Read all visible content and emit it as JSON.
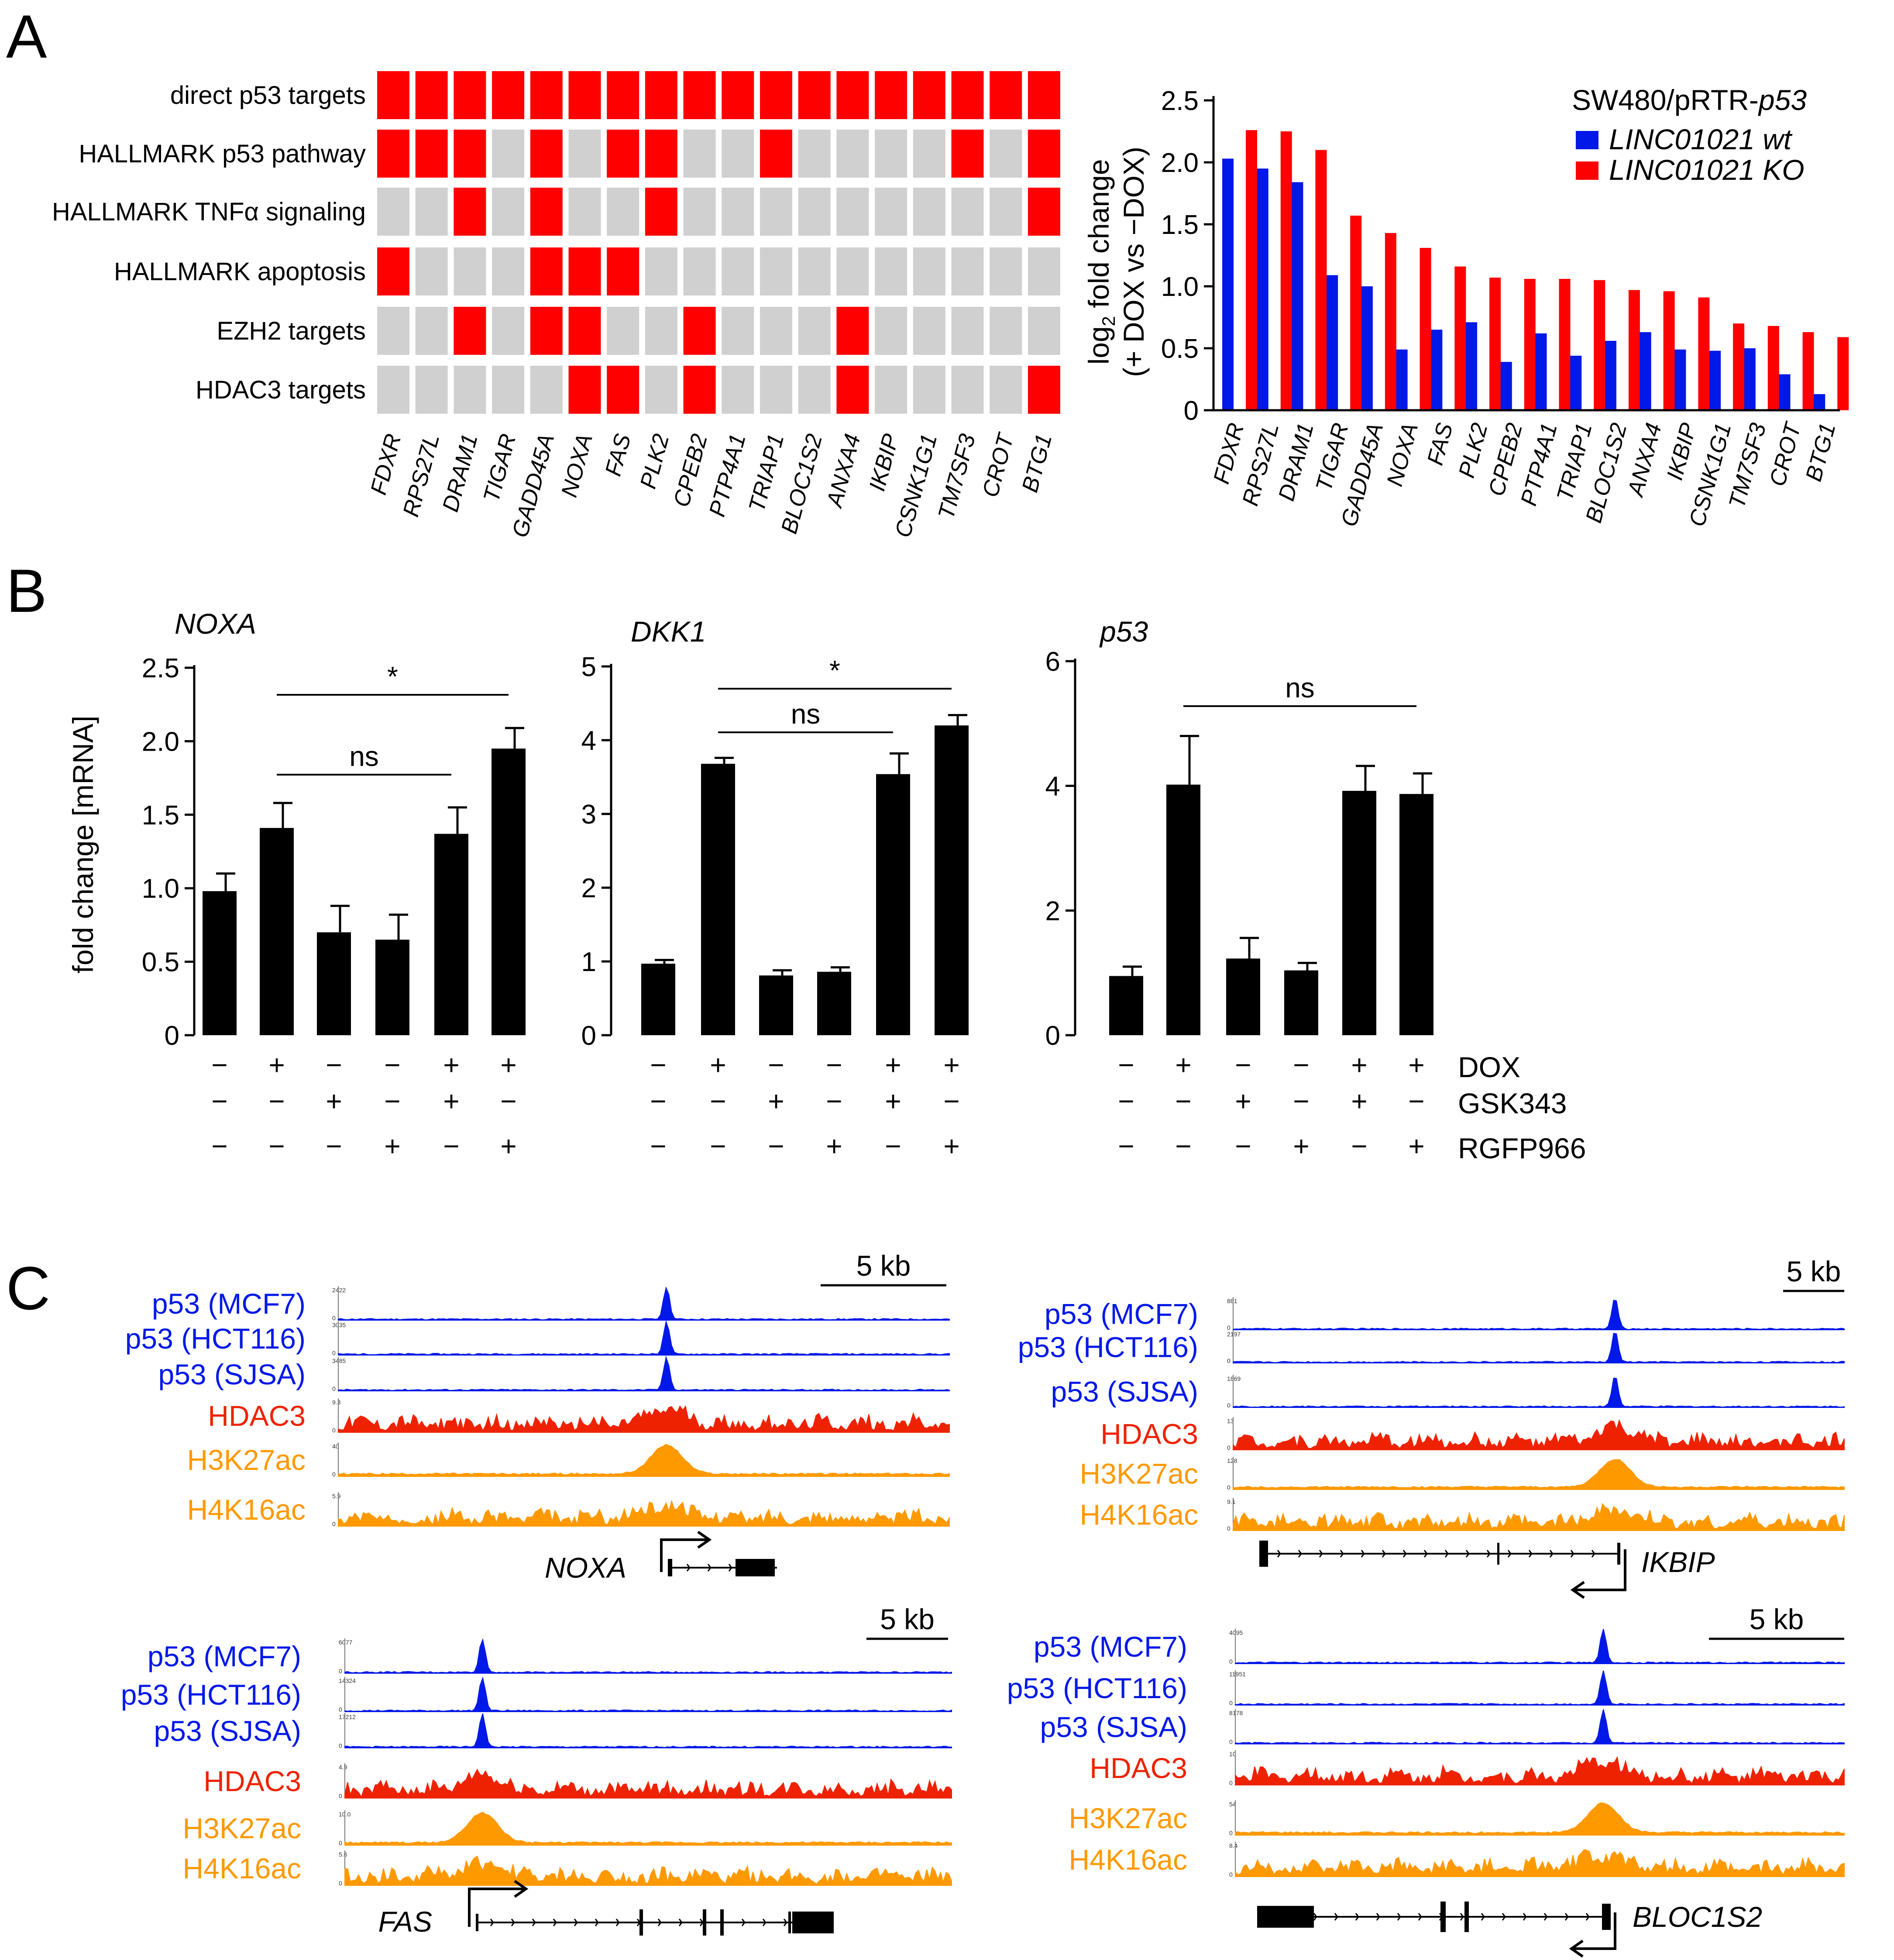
{
  "panels": {
    "a": "A",
    "b": "B",
    "c": "C"
  },
  "colors": {
    "red": "#ff0000",
    "grey": "#d0d0d0",
    "blue": "#0018e8",
    "chip_red": "#ee2200",
    "chip_orange": "#ff9900",
    "bar": "#000000"
  },
  "heatmap": {
    "rows": [
      "direct p53 targets",
      "HALLMARK p53 pathway",
      "HALLMARK TNFα signaling",
      "HALLMARK apoptosis",
      "EZH2 targets",
      "HDAC3 targets"
    ],
    "genes": [
      "FDXR",
      "RPS27L",
      "DRAM1",
      "TIGAR",
      "GADD45A",
      "NOXA",
      "FAS",
      "PLK2",
      "CPEB2",
      "PTP4A1",
      "TRIAP1",
      "BLOC1S2",
      "ANXA4",
      "IKBIP",
      "CSNK1G1",
      "TM7SF3",
      "CROT",
      "BTG1"
    ],
    "matrix": [
      [
        1,
        1,
        1,
        1,
        1,
        1,
        1,
        1,
        1,
        1,
        1,
        1,
        1,
        1,
        1,
        1,
        1,
        1
      ],
      [
        1,
        1,
        1,
        0,
        1,
        0,
        1,
        1,
        0,
        0,
        1,
        0,
        0,
        0,
        0,
        1,
        0,
        1
      ],
      [
        0,
        0,
        1,
        0,
        1,
        0,
        0,
        1,
        0,
        0,
        0,
        0,
        0,
        0,
        0,
        0,
        0,
        1
      ],
      [
        1,
        0,
        0,
        0,
        1,
        1,
        1,
        0,
        0,
        0,
        0,
        0,
        0,
        0,
        0,
        0,
        0,
        0
      ],
      [
        0,
        0,
        1,
        0,
        1,
        1,
        0,
        0,
        1,
        0,
        0,
        0,
        1,
        0,
        0,
        0,
        0,
        0
      ],
      [
        0,
        0,
        0,
        0,
        0,
        1,
        1,
        0,
        1,
        0,
        0,
        0,
        1,
        0,
        0,
        0,
        0,
        1
      ]
    ]
  },
  "chart_data": [
    {
      "type": "bar",
      "title": "SW480/pRTR-p53",
      "title_prefix": "SW480/pRTR-",
      "title_suffix": "p53",
      "ylabel_line1": "log",
      "ylabel_sub": "2",
      "ylabel_line1_rest": " fold change",
      "ylabel_line2": "(+ DOX vs −DOX)",
      "categories": [
        "FDXR",
        "RPS27L",
        "DRAM1",
        "TIGAR",
        "GADD45A",
        "NOXA",
        "FAS",
        "PLK2",
        "CPEB2",
        "PTP4A1",
        "TRIAP1",
        "BLOC1S2",
        "ANXA4",
        "IKBIP",
        "CSNK1G1",
        "TM7SF3",
        "CROT",
        "BTG1"
      ],
      "series": [
        {
          "name": "LINC01021 wt",
          "color": "#0018e8",
          "values": [
            2.03,
            1.95,
            1.84,
            1.09,
            1.0,
            0.49,
            0.65,
            0.71,
            0.39,
            0.62,
            0.44,
            0.56,
            0.63,
            0.49,
            0.48,
            0.5,
            0.29,
            0.13
          ]
        },
        {
          "name": "LINC01021 KO",
          "color": "#ff0000",
          "values": [
            2.26,
            2.25,
            2.1,
            1.57,
            1.43,
            1.31,
            1.16,
            1.07,
            1.06,
            1.06,
            1.05,
            0.97,
            0.96,
            0.91,
            0.7,
            0.68,
            0.63,
            0.59
          ]
        }
      ],
      "yticks": [
        "0",
        "0.5",
        "1.0",
        "1.5",
        "2.0",
        "2.5"
      ],
      "ylim": [
        0,
        2.5
      ]
    },
    {
      "type": "bar",
      "title": "NOXA",
      "ylabel": "fold change [mRNA]",
      "categories": [
        "1",
        "2",
        "3",
        "4",
        "5",
        "6"
      ],
      "values": [
        0.98,
        1.41,
        0.7,
        0.65,
        1.37,
        1.95
      ],
      "errors": [
        0.12,
        0.17,
        0.18,
        0.17,
        0.18,
        0.14
      ],
      "yticks": [
        "0",
        "0.5",
        "1.0",
        "1.5",
        "2.0",
        "2.5"
      ],
      "ylim": [
        0,
        2.5
      ],
      "sig_upper": "*",
      "sig_lower": "ns"
    },
    {
      "type": "bar",
      "title": "DKK1",
      "categories": [
        "1",
        "2",
        "3",
        "4",
        "5",
        "6"
      ],
      "values": [
        0.97,
        3.68,
        0.81,
        0.86,
        3.54,
        4.2
      ],
      "errors": [
        0.05,
        0.08,
        0.07,
        0.06,
        0.28,
        0.14
      ],
      "yticks": [
        "0",
        "1",
        "2",
        "3",
        "4",
        "5"
      ],
      "ylim": [
        0,
        5
      ],
      "sig_upper": "*",
      "sig_lower": "ns"
    },
    {
      "type": "bar",
      "title": "p53",
      "categories": [
        "1",
        "2",
        "3",
        "4",
        "5",
        "6"
      ],
      "values": [
        0.95,
        4.02,
        1.23,
        1.04,
        3.92,
        3.87
      ],
      "errors": [
        0.15,
        0.78,
        0.33,
        0.12,
        0.4,
        0.33
      ],
      "yticks": [
        "0",
        "2",
        "4",
        "6"
      ],
      "ylim": [
        0,
        6
      ],
      "sig_upper": "ns"
    }
  ],
  "treatments": {
    "rows": [
      {
        "name": "DOX",
        "signs": [
          "−",
          "+",
          "−",
          "−",
          "+",
          "+"
        ]
      },
      {
        "name": "GSK343",
        "signs": [
          "−",
          "−",
          "+",
          "−",
          "+",
          "−"
        ]
      },
      {
        "name": "RGFP966",
        "signs": [
          "−",
          "−",
          "−",
          "+",
          "−",
          "+"
        ]
      }
    ]
  },
  "tracks": {
    "labels": [
      "p53 (MCF7)",
      "p53 (HCT116)",
      "p53 (SJSA)",
      "HDAC3",
      "H3K27ac",
      "H4K16ac"
    ],
    "scale_label": "5 kb",
    "loci": [
      {
        "gene": "NOXA",
        "scales": [
          "2422",
          "3035",
          "3485",
          "9.3",
          "40",
          "5.9"
        ]
      },
      {
        "gene": "IKBIP",
        "scales": [
          "881",
          "2197",
          "1869",
          "13",
          "128",
          "9.1"
        ]
      },
      {
        "gene": "FAS",
        "scales": [
          "6077",
          "14324",
          "17212",
          "4.9",
          "10.0",
          "5.6"
        ]
      },
      {
        "gene": "BLOC1S2",
        "scales": [
          "4095",
          "11951",
          "8178",
          "10",
          "54",
          "8.4"
        ]
      }
    ]
  }
}
